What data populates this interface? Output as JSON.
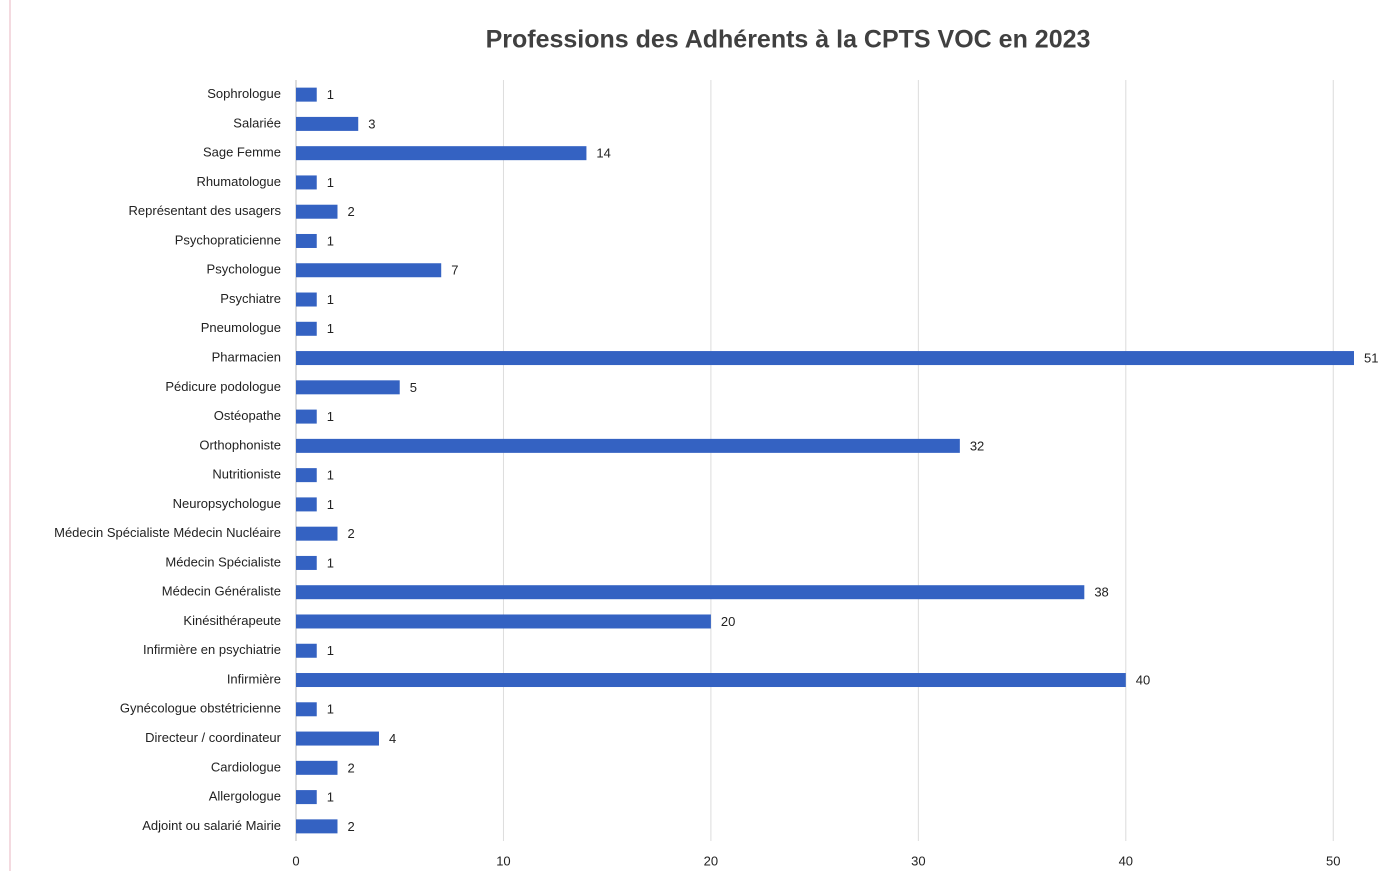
{
  "chart_data": {
    "type": "bar",
    "orientation": "horizontal",
    "title": "Professions des Adhérents à la CPTS VOC en 2023",
    "categories": [
      "Sophrologue",
      "Salariée",
      "Sage Femme",
      "Rhumatologue",
      "Représentant des usagers",
      "Psychopraticienne",
      "Psychologue",
      "Psychiatre",
      "Pneumologue",
      "Pharmacien",
      "Pédicure podologue",
      "Ostéopathe",
      "Orthophoniste",
      "Nutritioniste",
      "Neuropsychologue",
      "Médecin Spécialiste Médecin Nucléaire",
      "Médecin Spécialiste",
      "Médecin Généraliste",
      "Kinésithérapeute",
      "Infirmière en psychiatrie",
      "Infirmière",
      "Gynécologue obstétricienne",
      "Directeur / coordinateur",
      "Cardiologue",
      "Allergologue",
      "Adjoint ou salarié Mairie"
    ],
    "values": [
      1,
      3,
      14,
      1,
      2,
      1,
      7,
      1,
      1,
      51,
      5,
      1,
      32,
      1,
      1,
      2,
      1,
      38,
      20,
      1,
      40,
      1,
      4,
      2,
      1,
      2
    ],
    "color": "#3462c2",
    "xlim": [
      0,
      51
    ],
    "xticks": [
      0,
      10,
      20,
      30,
      40,
      50
    ],
    "grid": true
  }
}
